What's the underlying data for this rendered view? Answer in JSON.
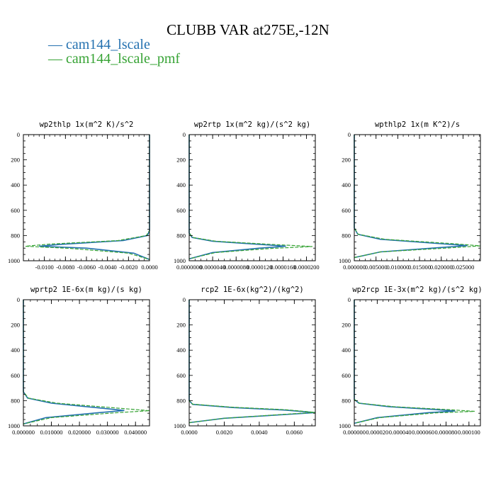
{
  "title": "CLUBB VAR at275E,-12N",
  "legend": [
    {
      "label": "— cam144_lscale",
      "color": "#2471b0"
    },
    {
      "label": "— cam144_lscale_pmf",
      "color": "#37a335"
    }
  ],
  "colors": {
    "series1": "#2471b0",
    "series2": "#37a335",
    "axis": "#000000"
  },
  "chart_data": [
    {
      "type": "line",
      "title": "wp2thlp  1x(m^2 K)/s^2",
      "xlim": [
        -0.012,
        0.0
      ],
      "xticks": [
        "-0.0100",
        "-0.0080",
        "-0.0060",
        "-0.0040",
        "-0.0020",
        "0.0000"
      ],
      "xtick_values": [
        -0.01,
        -0.008,
        -0.006,
        -0.004,
        -0.002,
        0.0
      ],
      "ylim": [
        1000,
        0
      ],
      "yticks": [
        "0",
        "200",
        "400",
        "600",
        "800",
        "1000"
      ],
      "series": [
        {
          "name": "cam144_lscale",
          "x": [
            0,
            0,
            -0.0002,
            -0.0025,
            -0.0085,
            -0.0105,
            -0.006,
            -0.0015,
            0
          ],
          "y": [
            0,
            760,
            800,
            840,
            870,
            885,
            900,
            940,
            990
          ]
        },
        {
          "name": "cam144_lscale_pmf",
          "x": [
            0,
            0,
            -0.0003,
            -0.003,
            -0.0095,
            -0.0118,
            -0.0075,
            -0.002,
            0
          ],
          "y": [
            0,
            760,
            800,
            840,
            868,
            885,
            902,
            940,
            990
          ]
        }
      ]
    },
    {
      "type": "line",
      "title": "wp2rtp  1x(m^2 kg)/(s^2 kg)",
      "xlim": [
        0.0,
        2.15e-05
      ],
      "xticks": [
        "0.0000000",
        "0.0000040",
        "0.0000080",
        "0.0000120",
        "0.0000160",
        "0.0000200"
      ],
      "xtick_values": [
        0,
        4e-06,
        8e-06,
        1.2e-05,
        1.6e-05,
        2e-05
      ],
      "ylim": [
        1000,
        0
      ],
      "yticks": [
        "0",
        "200",
        "400",
        "600",
        "800",
        "1000"
      ],
      "series": [
        {
          "name": "cam144_lscale",
          "x": [
            0,
            0,
            5e-07,
            4e-06,
            1.2e-05,
            1.65e-05,
            1.2e-05,
            4e-06,
            0
          ],
          "y": [
            0,
            780,
            815,
            845,
            870,
            885,
            900,
            935,
            985
          ]
        },
        {
          "name": "cam144_lscale_pmf",
          "x": [
            0,
            0,
            6e-07,
            4.5e-06,
            1.4e-05,
            2.1e-05,
            1.4e-05,
            4.5e-06,
            0
          ],
          "y": [
            0,
            780,
            815,
            845,
            870,
            887,
            902,
            935,
            985
          ]
        }
      ]
    },
    {
      "type": "line",
      "title": "wpthlp2  1x(m K^2)/s",
      "xlim": [
        0.0,
        0.029
      ],
      "xticks": [
        "0.000000",
        "0.005000",
        "0.010000",
        "0.015000",
        "0.020000",
        "0.025000"
      ],
      "xtick_values": [
        0,
        0.005,
        0.01,
        0.015,
        0.02,
        0.025
      ],
      "ylim": [
        1000,
        0
      ],
      "yticks": [
        "0",
        "200",
        "400",
        "600",
        "800",
        "1000"
      ],
      "series": [
        {
          "name": "cam144_lscale",
          "x": [
            0,
            0,
            0.0008,
            0.006,
            0.02,
            0.026,
            0.019,
            0.006,
            0
          ],
          "y": [
            0,
            740,
            790,
            830,
            865,
            880,
            897,
            930,
            975
          ]
        },
        {
          "name": "cam144_lscale_pmf",
          "x": [
            0,
            0,
            0.0009,
            0.007,
            0.023,
            0.029,
            0.021,
            0.006,
            0
          ],
          "y": [
            0,
            740,
            790,
            830,
            865,
            882,
            900,
            930,
            975
          ]
        }
      ]
    },
    {
      "type": "line",
      "title": "wprtp2  1E-6x(m kg)/(s kg)",
      "xlim": [
        0.0,
        0.045
      ],
      "xticks": [
        "0.000000",
        "0.010000",
        "0.020000",
        "0.030000",
        "0.040000"
      ],
      "xtick_values": [
        0,
        0.01,
        0.02,
        0.03,
        0.04
      ],
      "ylim": [
        1000,
        0
      ],
      "yticks": [
        "0",
        "200",
        "400",
        "600",
        "800",
        "1000"
      ],
      "series": [
        {
          "name": "cam144_lscale",
          "x": [
            0,
            0,
            0.0015,
            0.01,
            0.028,
            0.036,
            0.026,
            0.008,
            0
          ],
          "y": [
            0,
            730,
            780,
            820,
            860,
            878,
            897,
            935,
            985
          ]
        },
        {
          "name": "cam144_lscale_pmf",
          "x": [
            0,
            0,
            0.0018,
            0.012,
            0.034,
            0.045,
            0.032,
            0.01,
            0
          ],
          "y": [
            0,
            730,
            780,
            820,
            860,
            880,
            898,
            935,
            985
          ]
        }
      ]
    },
    {
      "type": "line",
      "title": "rcp2  1E-6x(kg^2)/(kg^2)",
      "xlim": [
        0.0,
        0.0072
      ],
      "xticks": [
        "0.0000",
        "0.0020",
        "0.0040",
        "0.0060"
      ],
      "xtick_values": [
        0,
        0.002,
        0.004,
        0.006
      ],
      "ylim": [
        1000,
        0
      ],
      "yticks": [
        "0",
        "200",
        "400",
        "600",
        "800",
        "1000"
      ],
      "series": [
        {
          "name": "cam144_lscale",
          "x": [
            0,
            0,
            0.0002,
            0.0025,
            0.0055,
            0.0072,
            0.0055,
            0.002,
            0
          ],
          "y": [
            0,
            800,
            830,
            855,
            875,
            895,
            910,
            940,
            975
          ]
        },
        {
          "name": "cam144_lscale_pmf",
          "x": [
            0,
            0,
            0.0002,
            0.0025,
            0.0055,
            0.0072,
            0.0055,
            0.002,
            0
          ],
          "y": [
            0,
            800,
            828,
            852,
            872,
            893,
            908,
            940,
            975
          ]
        }
      ]
    },
    {
      "type": "line",
      "title": "wp2rcp  1E-3x(m^2 kg)/(s^2 kg)",
      "xlim": [
        0.0,
        0.00011
      ],
      "xticks": [
        "0.000000",
        "0.000020",
        "0.000040",
        "0.000060",
        "0.000080",
        "0.000100"
      ],
      "xtick_values": [
        0,
        2e-05,
        4e-05,
        6e-05,
        8e-05,
        0.0001
      ],
      "ylim": [
        1000,
        0
      ],
      "yticks": [
        "0",
        "200",
        "400",
        "600",
        "800",
        "1000"
      ],
      "series": [
        {
          "name": "cam144_lscale",
          "x": [
            0,
            0,
            4e-06,
            3e-05,
            7e-05,
            8.8e-05,
            6.5e-05,
            2e-05,
            0
          ],
          "y": [
            0,
            790,
            820,
            848,
            870,
            882,
            895,
            935,
            980
          ]
        },
        {
          "name": "cam144_lscale_pmf",
          "x": [
            0,
            0,
            4.5e-06,
            3.4e-05,
            8e-05,
            0.000105,
            7e-05,
            2.2e-05,
            0
          ],
          "y": [
            0,
            790,
            820,
            848,
            870,
            885,
            898,
            935,
            980
          ]
        }
      ]
    }
  ]
}
